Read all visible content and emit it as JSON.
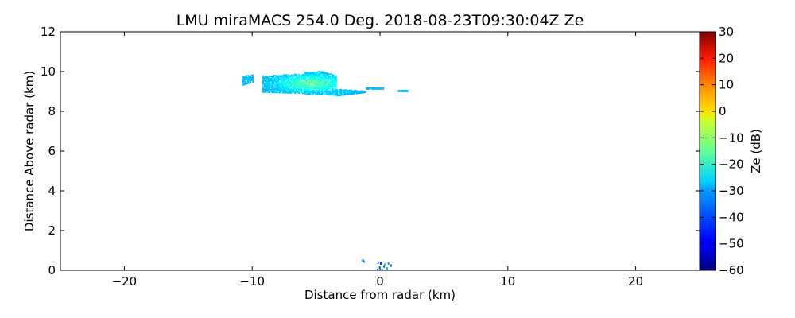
{
  "chart_data": {
    "type": "heatmap",
    "title": "LMU miraMACS 254.0 Deg. 2018-08-23T09:30:04Z  Ze",
    "xlabel": "Distance from radar (km)",
    "ylabel": "Distance Above radar  (km)",
    "xlim": [
      -25,
      25
    ],
    "ylim": [
      0,
      12
    ],
    "xticks": [
      -20,
      -10,
      0,
      10,
      20
    ],
    "xtick_labels": [
      "−20",
      "−10",
      "0",
      "10",
      "20"
    ],
    "yticks": [
      0,
      2,
      4,
      6,
      8,
      10,
      12
    ],
    "ytick_labels": [
      "0",
      "2",
      "4",
      "6",
      "8",
      "10",
      "12"
    ],
    "grid": false,
    "colorbar": {
      "label": "Ze (dB)",
      "range": [
        -60,
        30
      ],
      "colormap": "jet",
      "ticks": [
        30,
        20,
        10,
        0,
        -10,
        -20,
        -30,
        -40,
        -50,
        -60
      ],
      "tick_labels": [
        "30",
        "20",
        "10",
        "0",
        "−10",
        "−20",
        "−30",
        "−40",
        "−50",
        "−60"
      ]
    },
    "cloud_layer": {
      "x_range_km": [
        -10.8,
        2.1
      ],
      "height_range_km": [
        8.7,
        10.1
      ],
      "ze_range_dB": [
        -32,
        -18
      ],
      "peak_ze_dB": -18
    },
    "near_radar_echoes": {
      "x_range_km": [
        -1.5,
        0.8
      ],
      "height_range_km": [
        0,
        0.5
      ],
      "ze_range_dB": [
        -45,
        -28
      ]
    }
  }
}
